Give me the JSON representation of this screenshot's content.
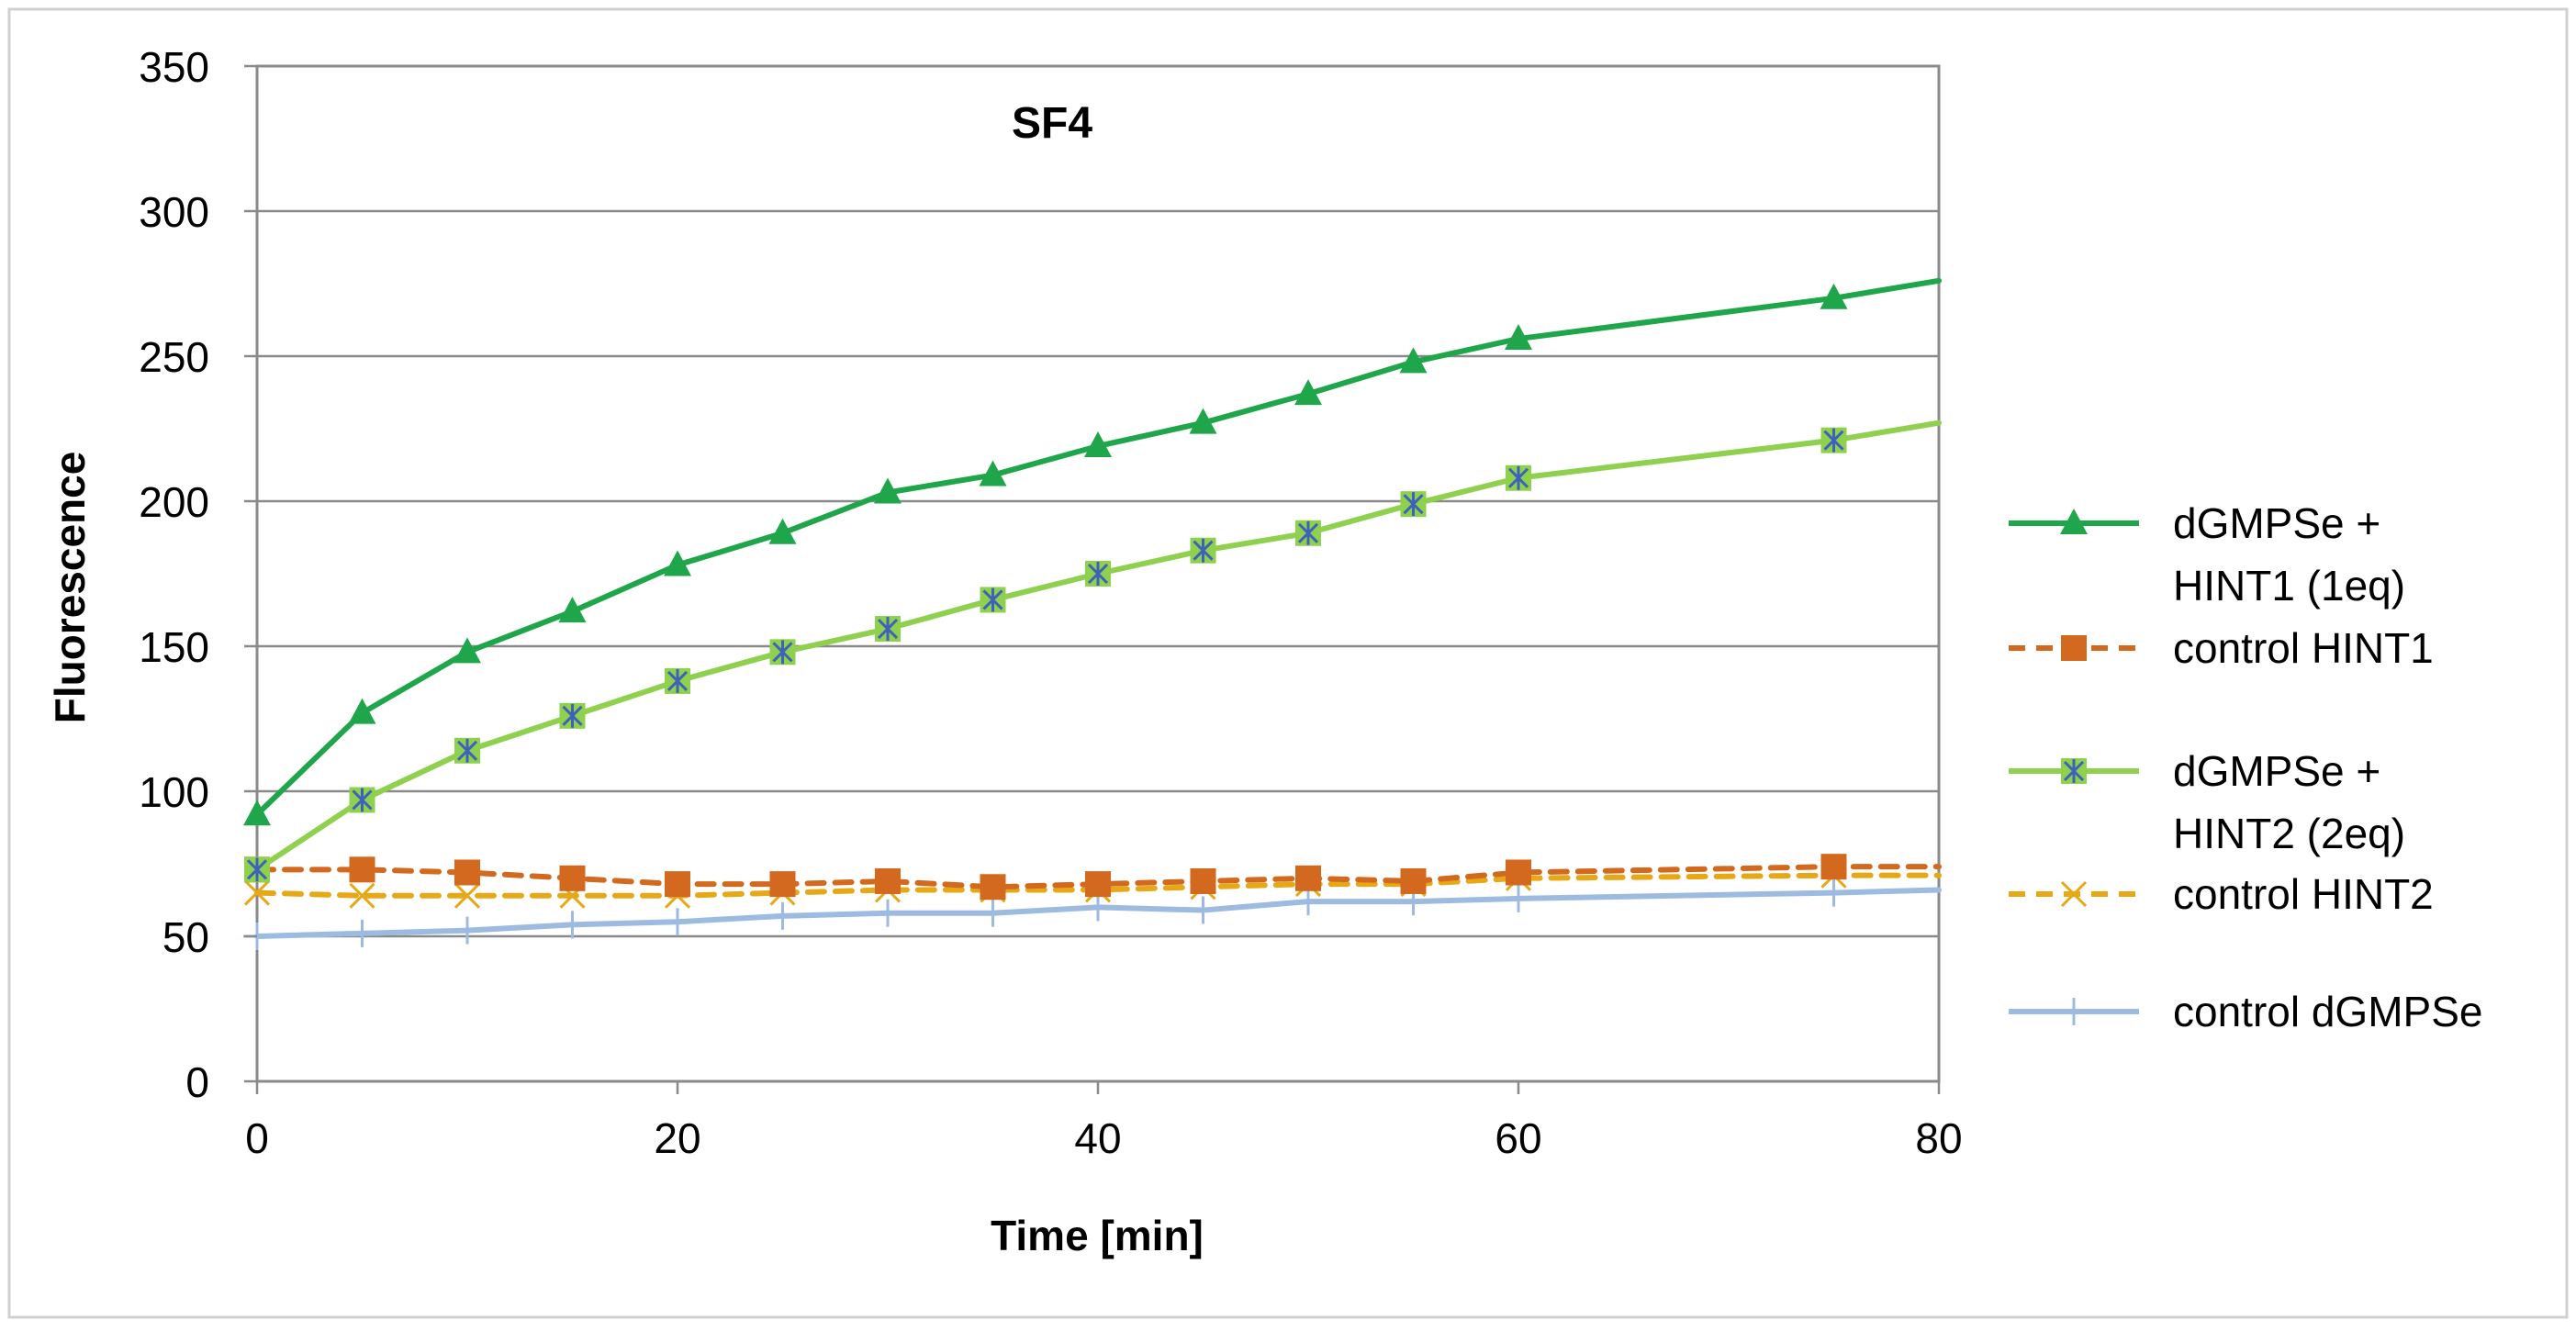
{
  "chart_data": {
    "type": "line",
    "title": "SF4",
    "xlabel": "Time [min]",
    "ylabel": "Fluorescence",
    "xlim": [
      0,
      80
    ],
    "ylim": [
      0,
      350
    ],
    "xticks": [
      0,
      20,
      40,
      60,
      80
    ],
    "yticks": [
      0,
      50,
      100,
      150,
      200,
      250,
      300,
      350
    ],
    "grid": "horizontal",
    "legend_position": "right",
    "series": [
      {
        "name": "dGMPSe + HINT1 (1eq)",
        "legend_lines": [
          "dGMPSe +",
          "HINT1 (1eq)"
        ],
        "color": "#1fa64a",
        "marker": "triangle",
        "dash": "solid",
        "x": [
          0,
          5,
          10,
          15,
          20,
          25,
          30,
          35,
          40,
          45,
          50,
          55,
          60,
          75,
          80
        ],
        "y": [
          92,
          127,
          148,
          162,
          178,
          189,
          203,
          209,
          219,
          227,
          237,
          248,
          256,
          270,
          276
        ],
        "marker_skip_last": true
      },
      {
        "name": "control HINT1",
        "legend_lines": [
          "control HINT1"
        ],
        "color": "#d2691e",
        "marker": "square",
        "dash": "dashed",
        "x": [
          0,
          5,
          10,
          15,
          20,
          25,
          30,
          35,
          40,
          45,
          50,
          55,
          60,
          75,
          80
        ],
        "y": [
          73,
          73,
          72,
          70,
          68,
          68,
          69,
          67,
          68,
          69,
          70,
          69,
          72,
          74,
          74
        ],
        "marker_skip_last": true
      },
      {
        "name": "dGMPSe + HINT2 (2eq)",
        "legend_lines": [
          "dGMPSe +",
          "HINT2 (2eq)"
        ],
        "color": "#8fd14f",
        "marker": "boxstar",
        "dash": "solid",
        "x": [
          0,
          5,
          10,
          15,
          20,
          25,
          30,
          35,
          40,
          45,
          50,
          55,
          60,
          75,
          80
        ],
        "y": [
          73,
          97,
          114,
          126,
          138,
          148,
          156,
          166,
          175,
          183,
          189,
          199,
          208,
          221,
          227
        ],
        "marker_skip_last": true
      },
      {
        "name": "control HINT2",
        "legend_lines": [
          "control HINT2"
        ],
        "color": "#e6a817",
        "marker": "x",
        "dash": "dashed",
        "x": [
          0,
          5,
          10,
          15,
          20,
          25,
          30,
          35,
          40,
          45,
          50,
          55,
          60,
          75,
          80
        ],
        "y": [
          65,
          64,
          64,
          64,
          64,
          65,
          66,
          66,
          66,
          67,
          68,
          68,
          70,
          71,
          71
        ],
        "marker_skip_last": true
      },
      {
        "name": "control dGMPSe",
        "legend_lines": [
          "control dGMPSe"
        ],
        "color": "#9dbbe0",
        "marker": "plus",
        "dash": "solid",
        "x": [
          0,
          5,
          10,
          15,
          20,
          25,
          30,
          35,
          40,
          45,
          50,
          55,
          60,
          75,
          80
        ],
        "y": [
          50,
          51,
          52,
          54,
          55,
          57,
          58,
          58,
          60,
          59,
          62,
          62,
          63,
          65,
          66
        ],
        "marker_skip_last": true
      }
    ]
  }
}
